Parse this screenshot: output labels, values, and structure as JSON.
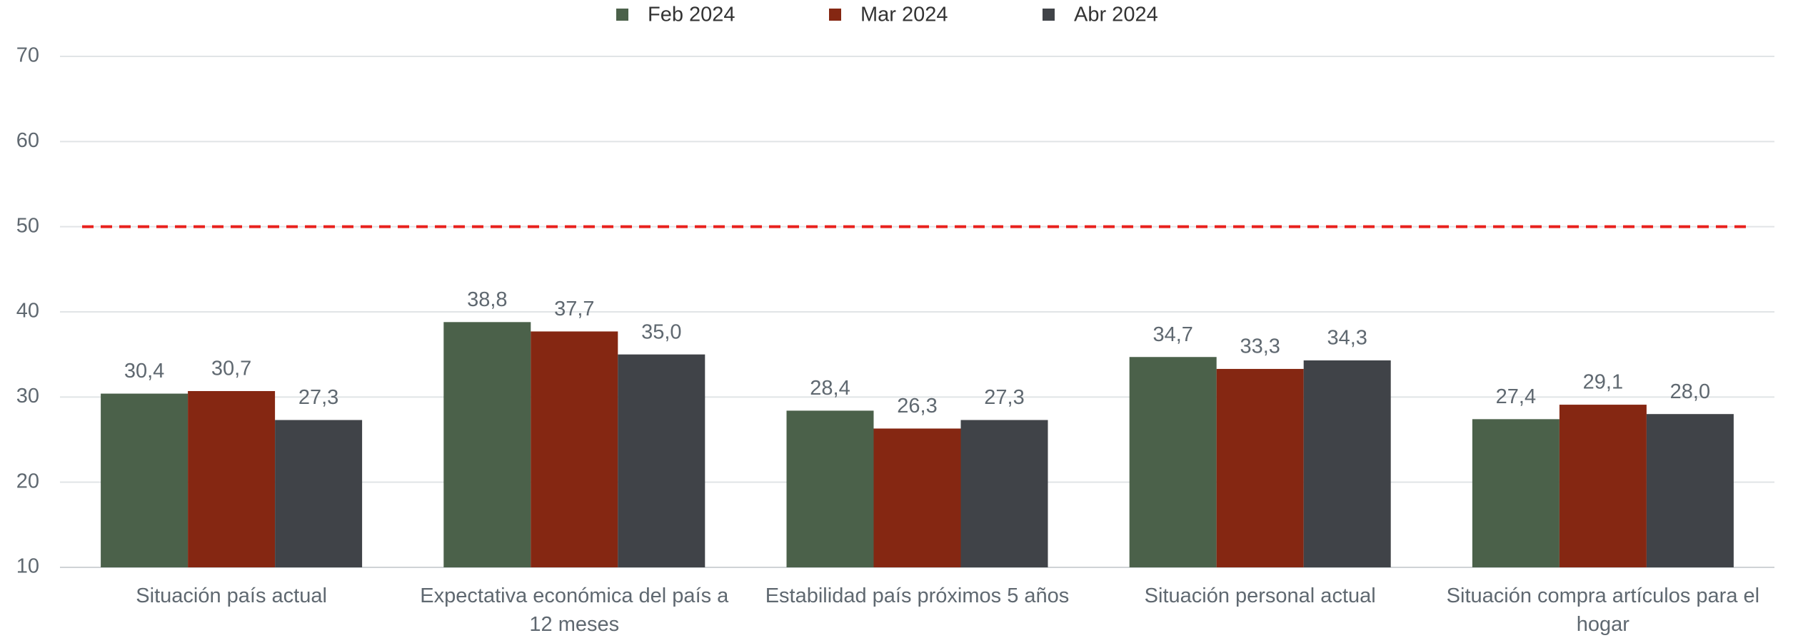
{
  "chart_data": {
    "type": "bar",
    "categories": [
      "Situación país actual",
      "Expectativa económica del país a 12 meses",
      "Estabilidad país próximos 5 años",
      "Situación personal actual",
      "Situación compra artículos para el hogar"
    ],
    "series": [
      {
        "name": "Feb 2024",
        "color": "#4b614a",
        "values": [
          30.4,
          38.8,
          28.4,
          34.7,
          27.4
        ],
        "value_labels": [
          "30,4",
          "38,8",
          "28,4",
          "34,7",
          "27,4"
        ]
      },
      {
        "name": "Mar 2024",
        "color": "#852712",
        "values": [
          30.7,
          37.7,
          26.3,
          33.3,
          29.1
        ],
        "value_labels": [
          "30,7",
          "37,7",
          "26,3",
          "33,3",
          "29,1"
        ]
      },
      {
        "name": "Abr 2024",
        "color": "#404348",
        "values": [
          27.3,
          35.0,
          27.3,
          34.3,
          28.0
        ],
        "value_labels": [
          "27,3",
          "35,0",
          "27,3",
          "34,3",
          "28,0"
        ]
      }
    ],
    "ylim": [
      10,
      70
    ],
    "yticks": [
      10,
      20,
      30,
      40,
      50,
      60,
      70
    ],
    "grid": true,
    "reference_line": {
      "value": 50,
      "color": "#e8211d"
    },
    "legend": "top"
  }
}
